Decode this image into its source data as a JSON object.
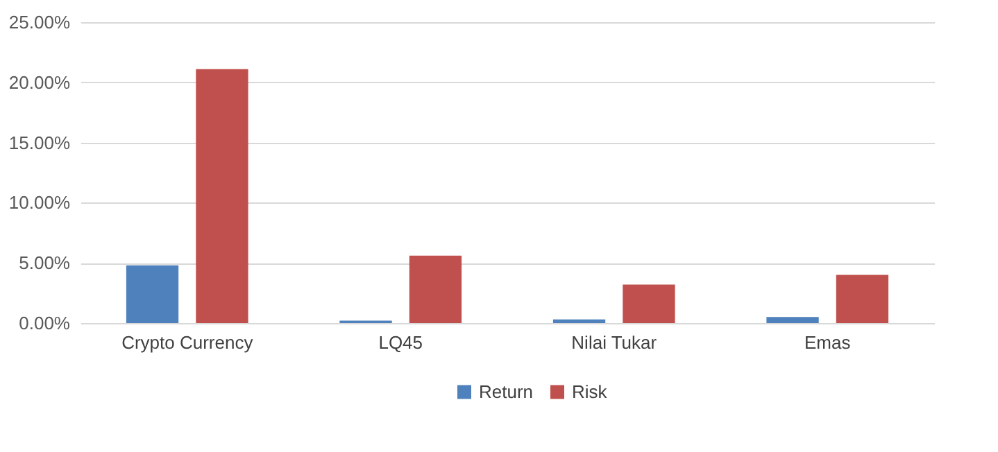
{
  "chart_data": {
    "type": "bar",
    "categories": [
      "Crypto Currency",
      "LQ45",
      "Nilai Tukar",
      "Emas"
    ],
    "series": [
      {
        "name": "Return",
        "color": "#4f81bd",
        "values": [
          4.8,
          0.2,
          0.3,
          0.5
        ]
      },
      {
        "name": "Risk",
        "color": "#c0504d",
        "values": [
          21.1,
          5.6,
          3.2,
          4.0
        ]
      }
    ],
    "ylim": [
      0,
      25
    ],
    "yticks": [
      {
        "value": 0,
        "label": "0.00%"
      },
      {
        "value": 5,
        "label": "5.00%"
      },
      {
        "value": 10,
        "label": "10.00%"
      },
      {
        "value": 15,
        "label": "15.00%"
      },
      {
        "value": 20,
        "label": "20.00%"
      },
      {
        "value": 25,
        "label": "25.00%"
      }
    ],
    "grid": "y",
    "legend": "bottom"
  }
}
